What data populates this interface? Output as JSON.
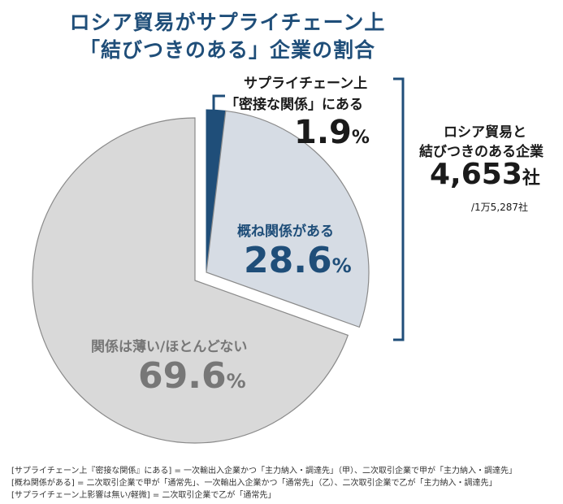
{
  "title": {
    "line1": "ロシア貿易がサプライチェーン上",
    "line2": "「結びつきのある」企業の割合"
  },
  "chart_data": {
    "type": "pie",
    "series": [
      {
        "name": "サプライチェーン上「密接な関係」にある",
        "value": 1.9,
        "color": "#1f4e79",
        "exploded": true
      },
      {
        "name": "概ね関係がある",
        "value": 28.6,
        "color": "#d6dce4",
        "exploded": true
      },
      {
        "name": "関係は薄い/ほとんどない",
        "value": 69.6,
        "color": "#d9d9d9",
        "exploded": false
      }
    ],
    "labels": {
      "close_line1": "サプライチェーン上",
      "close_line2": "「密接な関係」にある",
      "close_num": "1.9",
      "mostly": "概ね関係がある",
      "mostly_num": "28.6",
      "weak": "関係は薄い/ほとんどない",
      "weak_num": "69.6",
      "unit": "%"
    },
    "annotation": {
      "line1": "ロシア貿易と",
      "line2": "結びつきのある企業",
      "count": "4,653",
      "count_unit": "社",
      "total": "/1万5,287社"
    }
  },
  "notes": [
    "[サプライチェーン上『密接な関係』にある] = 一次輸出入企業かつ「主力納入・調達先」（甲）、二次取引企業で甲が「主力納入・調達先」",
    "[概ね関係がある] = 二次取引企業で甲が「通常先」、一次輸出入企業かつ「通常先」（乙）、二次取引企業で乙が「主力納入・調達先」",
    "[サプライチェーン上影響は無い/軽微] = 二次取引企業で乙が「通常先」"
  ]
}
